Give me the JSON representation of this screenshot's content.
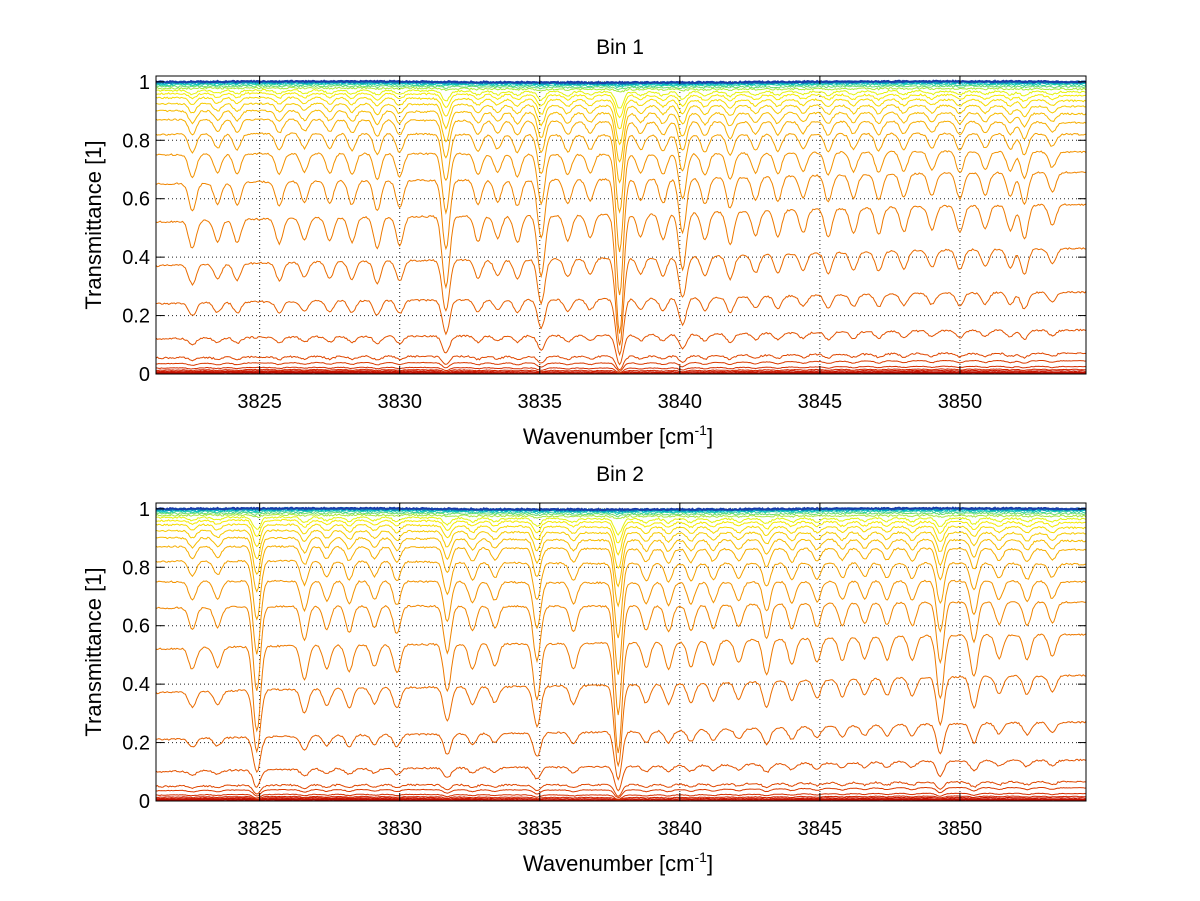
{
  "chart_data": [
    {
      "type": "line",
      "title": "Bin 1",
      "xlabel_base": "Wavenumber [cm",
      "xlabel_sup": "-1",
      "xlabel_close": "]",
      "ylabel": "Transmittance [1]",
      "xlim": [
        3821.3,
        3854.5
      ],
      "ylim": [
        0,
        1.02
      ],
      "xticks": [
        3825,
        3830,
        3835,
        3840,
        3845,
        3850
      ],
      "xtick_labels": [
        "3825",
        "3830",
        "3835",
        "3840",
        "3845",
        "3850"
      ],
      "yticks": [
        0,
        0.2,
        0.4,
        0.6,
        0.8,
        1
      ],
      "ytick_labels": [
        "0",
        "0.2",
        "0.4",
        "0.6",
        "0.8",
        "1"
      ],
      "grid": true,
      "series_count": 30,
      "line_left_values": [
        0.0,
        0.002,
        0.004,
        0.006,
        0.009,
        0.013,
        0.02,
        0.035,
        0.055,
        0.12,
        0.24,
        0.37,
        0.52,
        0.65,
        0.75,
        0.82,
        0.87,
        0.9,
        0.925,
        0.945,
        0.96,
        0.97,
        0.978,
        0.984,
        0.989,
        0.993,
        0.996,
        0.998,
        0.999,
        1.0
      ],
      "line_right_values": [
        0.0,
        0.002,
        0.004,
        0.006,
        0.01,
        0.015,
        0.025,
        0.045,
        0.07,
        0.15,
        0.28,
        0.43,
        0.58,
        0.69,
        0.76,
        0.82,
        0.86,
        0.89,
        0.915,
        0.935,
        0.952,
        0.965,
        0.975,
        0.983,
        0.989,
        0.993,
        0.996,
        0.998,
        0.999,
        1.0
      ],
      "absorption_lines": [
        3822.6,
        3823.5,
        3824.2,
        3825.7,
        3826.6,
        3827.5,
        3828.3,
        3829.2,
        3830.0,
        3831.65,
        3832.8,
        3833.5,
        3834.2,
        3835.05,
        3836.0,
        3836.8,
        3837.85,
        3838.6,
        3839.4,
        3840.1,
        3840.9,
        3841.8,
        3842.7,
        3843.5,
        3844.4,
        3845.3,
        3846.2,
        3847.1,
        3848.0,
        3849.0,
        3850.0,
        3850.9,
        3851.8,
        3852.3,
        3853.3
      ],
      "absorption_depths": [
        0.18,
        0.14,
        0.15,
        0.16,
        0.14,
        0.15,
        0.16,
        0.2,
        0.18,
        0.45,
        0.16,
        0.14,
        0.17,
        0.38,
        0.16,
        0.14,
        0.75,
        0.14,
        0.16,
        0.35,
        0.17,
        0.2,
        0.15,
        0.16,
        0.14,
        0.17,
        0.15,
        0.16,
        0.15,
        0.14,
        0.16,
        0.14,
        0.15,
        0.2,
        0.12
      ],
      "colors_dark_to_light": [
        "#b00000",
        "#cc1800",
        "#e04a00",
        "#ef7e00",
        "#f7b400",
        "#f5f500",
        "#00c8c8",
        "#1a3aa8"
      ]
    },
    {
      "type": "line",
      "title": "Bin 2",
      "xlabel_base": "Wavenumber [cm",
      "xlabel_sup": "-1",
      "xlabel_close": "]",
      "ylabel": "Transmittance [1]",
      "xlim": [
        3821.3,
        3854.5
      ],
      "ylim": [
        0,
        1.02
      ],
      "xticks": [
        3825,
        3830,
        3835,
        3840,
        3845,
        3850
      ],
      "xtick_labels": [
        "3825",
        "3830",
        "3835",
        "3840",
        "3845",
        "3850"
      ],
      "yticks": [
        0,
        0.2,
        0.4,
        0.6,
        0.8,
        1
      ],
      "ytick_labels": [
        "0",
        "0.2",
        "0.4",
        "0.6",
        "0.8",
        "1"
      ],
      "grid": true,
      "series_count": 30,
      "line_left_values": [
        0.0,
        0.002,
        0.004,
        0.006,
        0.009,
        0.013,
        0.02,
        0.035,
        0.05,
        0.1,
        0.21,
        0.37,
        0.52,
        0.66,
        0.75,
        0.82,
        0.87,
        0.9,
        0.925,
        0.945,
        0.96,
        0.97,
        0.978,
        0.984,
        0.989,
        0.993,
        0.996,
        0.998,
        0.999,
        1.0
      ],
      "line_right_values": [
        0.0,
        0.002,
        0.004,
        0.006,
        0.01,
        0.015,
        0.025,
        0.045,
        0.065,
        0.14,
        0.27,
        0.43,
        0.57,
        0.68,
        0.75,
        0.81,
        0.86,
        0.89,
        0.915,
        0.935,
        0.952,
        0.965,
        0.975,
        0.983,
        0.989,
        0.993,
        0.996,
        0.998,
        0.999,
        1.0
      ],
      "absorption_lines": [
        3822.6,
        3823.5,
        3824.9,
        3826.6,
        3827.4,
        3828.2,
        3829.1,
        3829.9,
        3831.7,
        3832.6,
        3833.4,
        3834.9,
        3836.2,
        3837.8,
        3838.8,
        3839.6,
        3840.4,
        3841.2,
        3842.1,
        3843.1,
        3844.0,
        3844.9,
        3845.8,
        3846.6,
        3847.4,
        3848.3,
        3849.3,
        3850.5,
        3851.4,
        3852.4,
        3853.3
      ],
      "absorption_depths": [
        0.14,
        0.13,
        0.55,
        0.22,
        0.15,
        0.17,
        0.14,
        0.18,
        0.3,
        0.16,
        0.14,
        0.35,
        0.16,
        0.7,
        0.16,
        0.17,
        0.16,
        0.15,
        0.14,
        0.22,
        0.16,
        0.15,
        0.14,
        0.13,
        0.14,
        0.15,
        0.38,
        0.25,
        0.14,
        0.15,
        0.13
      ],
      "colors_dark_to_light": [
        "#b00000",
        "#cc1800",
        "#e04a00",
        "#ef7e00",
        "#f7b400",
        "#f5f500",
        "#00c8c8",
        "#1a3aa8"
      ]
    }
  ]
}
